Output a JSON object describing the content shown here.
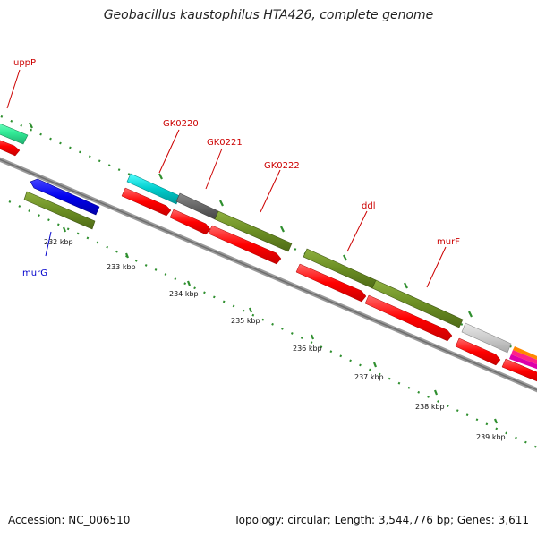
{
  "title": "Geobacillus kaustophilus HTA426, complete genome",
  "footer": {
    "accession_label": "Accession:",
    "accession": "NC_006510",
    "topology_label": "Topology:",
    "topology": "circular",
    "length_label": "Length:",
    "length": "3,544,776 bp",
    "genes_label": "Genes:",
    "genes": "3,611"
  },
  "gene_labels": [
    {
      "name": "uppP",
      "color": "#cc0000"
    },
    {
      "name": "murG",
      "color": "#0000cc"
    },
    {
      "name": "GK0220",
      "color": "#cc0000"
    },
    {
      "name": "GK0221",
      "color": "#cc0000"
    },
    {
      "name": "GK0222",
      "color": "#cc0000"
    },
    {
      "name": "ddl",
      "color": "#cc0000"
    },
    {
      "name": "murF",
      "color": "#cc0000"
    }
  ],
  "kbp_ticks": [
    "232 kbp",
    "233 kbp",
    "234 kbp",
    "235 kbp",
    "236 kbp",
    "237 kbp",
    "238 kbp",
    "239 kbp"
  ],
  "colors": {
    "cds": "#ff0000",
    "olive": "#6b8e23",
    "cyan": "#00cccc",
    "blue": "#0000ee",
    "gray": "#666666",
    "light_gray": "#cccccc",
    "teal": "#33ee99",
    "backbone": "#888888",
    "dots": "#2f8f2f"
  }
}
